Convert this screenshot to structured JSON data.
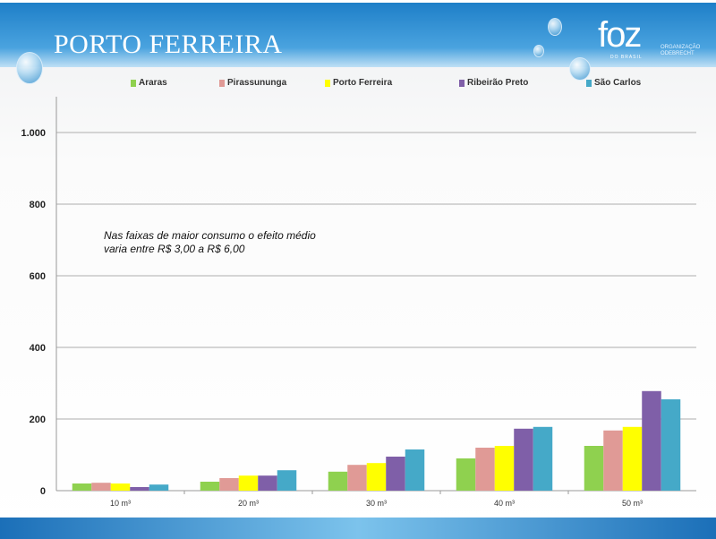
{
  "header": {
    "title": "PORTO FERREIRA",
    "logo_text": "foz",
    "logo_subtext": "DO BRASIL",
    "logo_org": "ORGANIZAÇÃO ODEBRECHT"
  },
  "annotation": "Nas faixas de maior consumo o efeito médio varia entre R$ 3,00 a R$ 6,00",
  "chart_data": {
    "type": "bar",
    "categories": [
      "10 m³",
      "20 m³",
      "30 m³",
      "40 m³",
      "50 m³"
    ],
    "series": [
      {
        "name": "Araras",
        "color": "#8fd14f",
        "values": [
          20,
          25,
          53,
          90,
          125
        ]
      },
      {
        "name": "Pirassununga",
        "color": "#e09a96",
        "values": [
          22,
          35,
          72,
          120,
          168
        ]
      },
      {
        "name": "Porto Ferreira",
        "color": "#ffff00",
        "values": [
          20,
          42,
          77,
          125,
          178
        ]
      },
      {
        "name": "Ribeirão Preto",
        "color": "#7f5fa8",
        "values": [
          10,
          42,
          95,
          173,
          278
        ]
      },
      {
        "name": "São Carlos",
        "color": "#45a9c8",
        "values": [
          17,
          57,
          115,
          178,
          255
        ]
      }
    ],
    "yticks": [
      0,
      200,
      400,
      600,
      800,
      1000
    ],
    "ytick_labels": [
      "0",
      "200",
      "400",
      "600",
      "800",
      "1.000"
    ],
    "ylim": [
      0,
      1100
    ],
    "grid": true,
    "legend": "top"
  }
}
